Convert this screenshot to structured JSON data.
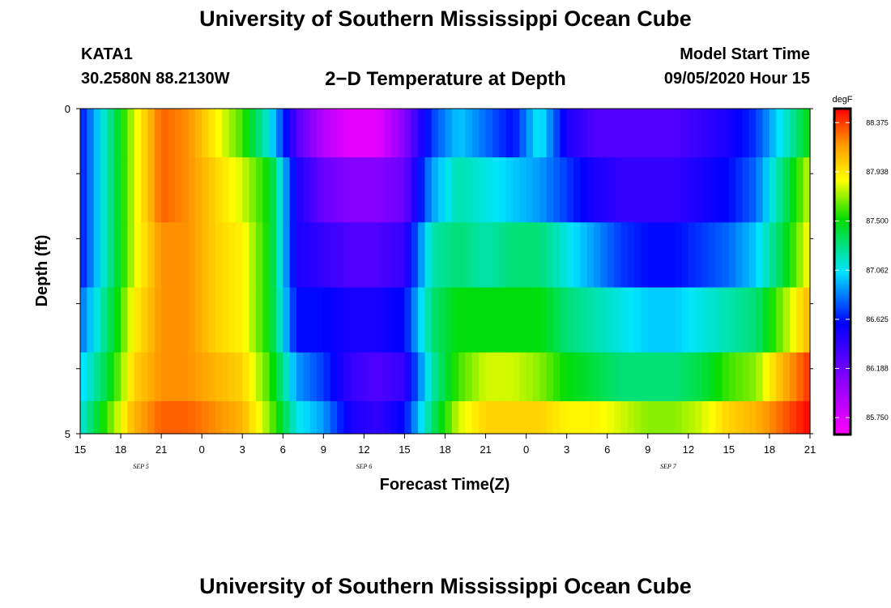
{
  "header": {
    "title": "University of Southern Mississippi Ocean Cube",
    "station": "KATA1",
    "coords": "30.2580N 88.2130W",
    "subtitle": "2−D Temperature at Depth",
    "model_label": "Model Start Time",
    "model_time": "09/05/2020 Hour 15"
  },
  "footer": {
    "title": "University of Southern Mississippi Ocean Cube"
  },
  "chart_data": {
    "type": "heatmap",
    "title": "2−D Temperature at Depth",
    "xlabel": "Forecast Time(Z)",
    "ylabel": "Depth (ft)",
    "x_ticks": [
      "15",
      "18",
      "21",
      "0",
      "3",
      "6",
      "9",
      "12",
      "15",
      "18",
      "21",
      "0",
      "3",
      "6",
      "9",
      "12",
      "15",
      "18",
      "21"
    ],
    "x_day_labels": [
      {
        "label": "SEP 5",
        "at_hour": 4.5
      },
      {
        "label": "SEP 6",
        "at_hour": 21
      },
      {
        "label": "SEP 7",
        "at_hour": 43.5
      }
    ],
    "x_range_hours": [
      0,
      54
    ],
    "y_ticks": [
      "0",
      "5"
    ],
    "y_range_ft": [
      0,
      5
    ],
    "colorbar": {
      "unit": "degF",
      "range": [
        85.6,
        88.5
      ],
      "labels": [
        "88.375",
        "87.938",
        "87.500",
        "87.062",
        "86.625",
        "86.188",
        "85.750"
      ]
    },
    "depth_layers_ft": [
      0.25,
      1.25,
      2.25,
      3.25,
      4.25,
      4.75
    ],
    "time_knots_hours": [
      0,
      2,
      4,
      6,
      8,
      10,
      12,
      14,
      16,
      18,
      20,
      22,
      24,
      26,
      28,
      30,
      32,
      34,
      36,
      38,
      40,
      42,
      44,
      46,
      48,
      50,
      52,
      54
    ],
    "temperature_degF": [
      [
        86.6,
        87.2,
        87.8,
        88.3,
        88.2,
        87.9,
        87.6,
        87.1,
        86.3,
        85.9,
        85.7,
        85.7,
        86.1,
        86.7,
        87.0,
        86.8,
        86.6,
        87.1,
        86.5,
        86.3,
        86.3,
        86.3,
        86.3,
        86.4,
        86.5,
        86.7,
        87.1,
        87.5
      ],
      [
        86.6,
        87.2,
        87.8,
        88.3,
        88.2,
        88.0,
        87.8,
        87.5,
        86.5,
        86.2,
        86.1,
        86.1,
        86.2,
        86.9,
        87.2,
        87.1,
        87.0,
        86.9,
        86.7,
        86.5,
        86.4,
        86.4,
        86.4,
        86.5,
        86.6,
        86.8,
        87.3,
        87.8
      ],
      [
        86.6,
        87.2,
        87.8,
        88.2,
        88.2,
        88.0,
        87.9,
        87.5,
        86.5,
        86.4,
        86.3,
        86.3,
        86.4,
        87.2,
        87.3,
        87.2,
        87.3,
        87.3,
        87.1,
        86.9,
        86.7,
        86.6,
        86.6,
        86.7,
        86.8,
        87.0,
        87.4,
        87.9
      ],
      [
        86.8,
        87.3,
        87.9,
        88.2,
        88.2,
        88.0,
        87.9,
        87.5,
        86.6,
        86.6,
        86.5,
        86.5,
        86.6,
        87.3,
        87.5,
        87.5,
        87.5,
        87.5,
        87.3,
        87.2,
        87.1,
        87.0,
        87.0,
        87.1,
        87.2,
        87.3,
        87.7,
        88.1
      ],
      [
        87.0,
        87.4,
        88.0,
        88.2,
        88.2,
        88.1,
        88.0,
        87.6,
        86.9,
        86.7,
        86.4,
        86.3,
        86.4,
        87.2,
        87.6,
        87.8,
        87.8,
        87.7,
        87.5,
        87.4,
        87.3,
        87.3,
        87.3,
        87.4,
        87.6,
        87.7,
        88.1,
        88.4
      ],
      [
        87.1,
        87.6,
        88.1,
        88.3,
        88.3,
        88.2,
        88.1,
        87.7,
        87.1,
        86.9,
        86.5,
        86.4,
        86.6,
        87.3,
        87.8,
        88.0,
        88.0,
        88.0,
        87.9,
        87.9,
        87.8,
        87.7,
        87.7,
        87.8,
        88.0,
        88.1,
        88.3,
        88.5
      ]
    ]
  }
}
